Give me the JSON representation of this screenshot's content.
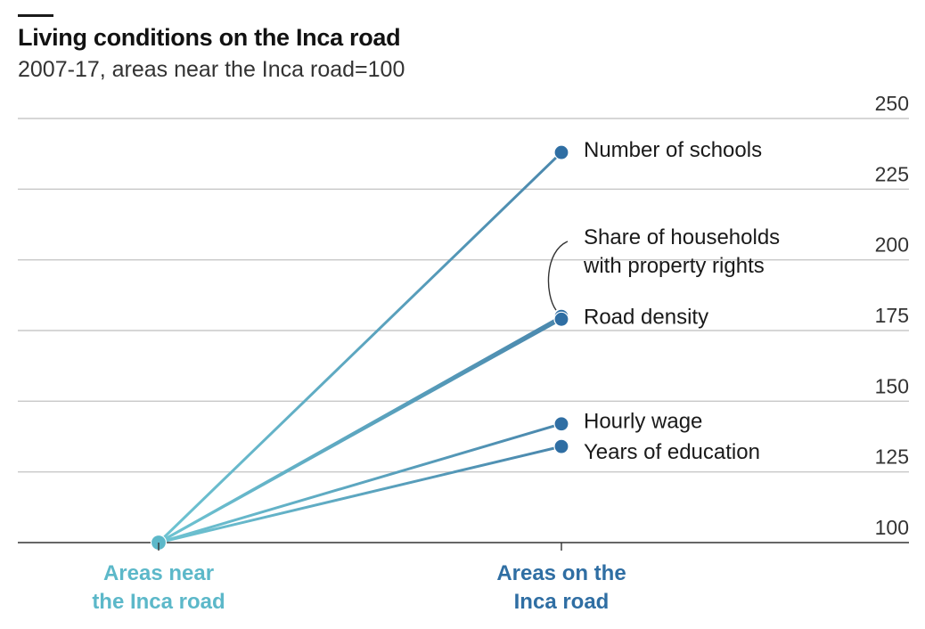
{
  "title": "Living conditions on the Inca road",
  "subtitle": "2007-17, areas near the Inca road=100",
  "colors": {
    "near": "#5cb8c9",
    "on": "#2f6ea3",
    "gridline": "#c8c8c8",
    "axis": "#333333"
  },
  "chart_data": {
    "type": "line",
    "title": "Living conditions on the Inca road",
    "subtitle": "2007-17, areas near the Inca road=100",
    "categories": [
      "Areas near the Inca road",
      "Areas on the Inca road"
    ],
    "category_lines": [
      [
        "Areas near",
        "the Inca road"
      ],
      [
        "Areas on the",
        "Inca road"
      ]
    ],
    "ylim": [
      100,
      250
    ],
    "yticks": [
      100,
      125,
      150,
      175,
      200,
      225,
      250
    ],
    "grid": true,
    "series": [
      {
        "name": "Number of schools",
        "label_lines": [
          "Number of schools"
        ],
        "values": [
          100,
          238
        ]
      },
      {
        "name": "Share of households with property rights",
        "label_lines": [
          "Share of households",
          "with property rights"
        ],
        "values": [
          100,
          180
        ]
      },
      {
        "name": "Road density",
        "label_lines": [
          "Road density"
        ],
        "values": [
          100,
          179
        ]
      },
      {
        "name": "Hourly wage",
        "label_lines": [
          "Hourly wage"
        ],
        "values": [
          100,
          142
        ]
      },
      {
        "name": "Years of education",
        "label_lines": [
          "Years of education"
        ],
        "values": [
          100,
          134
        ]
      }
    ]
  }
}
